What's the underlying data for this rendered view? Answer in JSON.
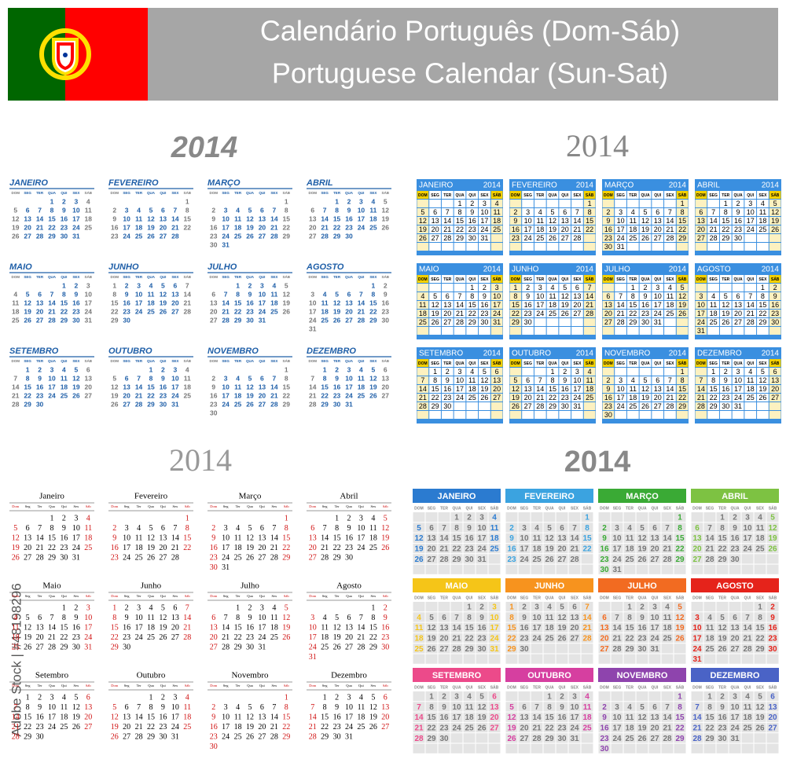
{
  "header": {
    "title_pt": "Calendário Português (Dom-Sáb)",
    "title_en": "Portuguese Calendar (Sun-Sat)"
  },
  "year": "2014",
  "watermark": "Adobe Stock | #48198296",
  "weekdays_upper": [
    "DOM",
    "SEG",
    "TER",
    "QUA",
    "QUI",
    "SEX",
    "SÁB"
  ],
  "weekdays_title": [
    "Dom",
    "Seg",
    "Ter",
    "Qua",
    "Qui",
    "Sex",
    "Sáb"
  ],
  "months": [
    {
      "upper": "JANEIRO",
      "title": "Janeiro",
      "color": "#2b7bd0",
      "days": [
        null,
        null,
        null,
        1,
        2,
        3,
        4,
        5,
        6,
        7,
        8,
        9,
        10,
        11,
        12,
        13,
        14,
        15,
        16,
        17,
        18,
        19,
        20,
        21,
        22,
        23,
        24,
        25,
        26,
        27,
        28,
        29,
        30,
        31
      ]
    },
    {
      "upper": "FEVEREIRO",
      "title": "Fevereiro",
      "color": "#3ba3e0",
      "days": [
        null,
        null,
        null,
        null,
        null,
        null,
        1,
        2,
        3,
        4,
        5,
        6,
        7,
        8,
        9,
        10,
        11,
        12,
        13,
        14,
        15,
        16,
        17,
        18,
        19,
        20,
        21,
        22,
        23,
        24,
        25,
        26,
        27,
        28
      ]
    },
    {
      "upper": "MARÇO",
      "title": "Março",
      "color": "#3aaa35",
      "days": [
        null,
        null,
        null,
        null,
        null,
        null,
        1,
        2,
        3,
        4,
        5,
        6,
        7,
        8,
        9,
        10,
        11,
        12,
        13,
        14,
        15,
        16,
        17,
        18,
        19,
        20,
        21,
        22,
        23,
        24,
        25,
        26,
        27,
        28,
        29,
        30,
        31
      ]
    },
    {
      "upper": "ABRIL",
      "title": "Abril",
      "color": "#7dc242",
      "days": [
        null,
        null,
        1,
        2,
        3,
        4,
        5,
        6,
        7,
        8,
        9,
        10,
        11,
        12,
        13,
        14,
        15,
        16,
        17,
        18,
        19,
        20,
        21,
        22,
        23,
        24,
        25,
        26,
        27,
        28,
        29,
        30
      ]
    },
    {
      "upper": "MAIO",
      "title": "Maio",
      "color": "#f5c518",
      "days": [
        null,
        null,
        null,
        null,
        1,
        2,
        3,
        4,
        5,
        6,
        7,
        8,
        9,
        10,
        11,
        12,
        13,
        14,
        15,
        16,
        17,
        18,
        19,
        20,
        21,
        22,
        23,
        24,
        25,
        26,
        27,
        28,
        29,
        30,
        31
      ]
    },
    {
      "upper": "JUNHO",
      "title": "Junho",
      "color": "#f7931e",
      "days": [
        1,
        2,
        3,
        4,
        5,
        6,
        7,
        8,
        9,
        10,
        11,
        12,
        13,
        14,
        15,
        16,
        17,
        18,
        19,
        20,
        21,
        22,
        23,
        24,
        25,
        26,
        27,
        28,
        29,
        30
      ]
    },
    {
      "upper": "JULHO",
      "title": "Julho",
      "color": "#f26b21",
      "days": [
        null,
        null,
        1,
        2,
        3,
        4,
        5,
        6,
        7,
        8,
        9,
        10,
        11,
        12,
        13,
        14,
        15,
        16,
        17,
        18,
        19,
        20,
        21,
        22,
        23,
        24,
        25,
        26,
        27,
        28,
        29,
        30,
        31
      ]
    },
    {
      "upper": "AGOSTO",
      "title": "Agosto",
      "color": "#e5231b",
      "days": [
        null,
        null,
        null,
        null,
        null,
        1,
        2,
        3,
        4,
        5,
        6,
        7,
        8,
        9,
        10,
        11,
        12,
        13,
        14,
        15,
        16,
        17,
        18,
        19,
        20,
        21,
        22,
        23,
        24,
        25,
        26,
        27,
        28,
        29,
        30,
        31
      ]
    },
    {
      "upper": "SETEMBRO",
      "title": "Setembro",
      "color": "#ec4a8a",
      "days": [
        null,
        1,
        2,
        3,
        4,
        5,
        6,
        7,
        8,
        9,
        10,
        11,
        12,
        13,
        14,
        15,
        16,
        17,
        18,
        19,
        20,
        21,
        22,
        23,
        24,
        25,
        26,
        27,
        28,
        29,
        30
      ]
    },
    {
      "upper": "OUTUBRO",
      "title": "Outubro",
      "color": "#d63fa0",
      "days": [
        null,
        null,
        null,
        1,
        2,
        3,
        4,
        5,
        6,
        7,
        8,
        9,
        10,
        11,
        12,
        13,
        14,
        15,
        16,
        17,
        18,
        19,
        20,
        21,
        22,
        23,
        24,
        25,
        26,
        27,
        28,
        29,
        30,
        31
      ]
    },
    {
      "upper": "NOVEMBRO",
      "title": "Novembro",
      "color": "#8e44ad",
      "days": [
        null,
        null,
        null,
        null,
        null,
        null,
        1,
        2,
        3,
        4,
        5,
        6,
        7,
        8,
        9,
        10,
        11,
        12,
        13,
        14,
        15,
        16,
        17,
        18,
        19,
        20,
        21,
        22,
        23,
        24,
        25,
        26,
        27,
        28,
        29,
        30
      ]
    },
    {
      "upper": "DEZEMBRO",
      "title": "Dezembro",
      "color": "#4a63c6",
      "days": [
        null,
        1,
        2,
        3,
        4,
        5,
        6,
        7,
        8,
        9,
        10,
        11,
        12,
        13,
        14,
        15,
        16,
        17,
        18,
        19,
        20,
        21,
        22,
        23,
        24,
        25,
        26,
        27,
        28,
        29,
        30,
        31
      ]
    }
  ]
}
